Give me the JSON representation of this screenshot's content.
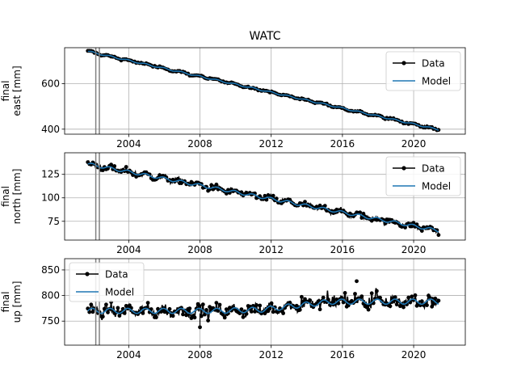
{
  "chart_data": {
    "type": "line",
    "title": "WATC",
    "x_range": [
      2000.4,
      2022.9
    ],
    "x_ticks": [
      2004,
      2008,
      2012,
      2016,
      2020
    ],
    "x_tick_labels": [
      "2004",
      "2008",
      "2012",
      "2016",
      "2020"
    ],
    "x_start": 2001.7,
    "x_end": 2021.4,
    "vertical_markers": [
      2002.15,
      2002.35
    ],
    "legend_placement": "top-right",
    "grid": true,
    "colors": {
      "data": "#000000",
      "model": "#1f77b4",
      "marker_line": "#808080",
      "grid": "#b0b0b0"
    },
    "legend": {
      "data_label": "Data",
      "model_label": "Model"
    },
    "panels": [
      {
        "ylabel_line1": "final",
        "ylabel_line2": "east [mm]",
        "ylim": [
          378,
          758
        ],
        "y_ticks": [
          400,
          600
        ],
        "y_tick_labels": [
          "400",
          "600"
        ],
        "legend_placement": "top-right",
        "model_start": 742,
        "model_end": 398,
        "model_seasonal_amplitude": 3,
        "data_scatter": 4,
        "series": [
          {
            "name": "Data",
            "x": [
              2002,
              2004,
              2006,
              2008,
              2010,
              2012,
              2014,
              2016,
              2018,
              2020,
              2021.4
            ],
            "values": [
              738,
              705,
              670,
              637,
              602,
              568,
              534,
              500,
              466,
              431,
              398
            ]
          },
          {
            "name": "Model",
            "x": [
              2002,
              2004,
              2006,
              2008,
              2010,
              2012,
              2014,
              2016,
              2018,
              2020,
              2021.4
            ],
            "values": [
              738,
              705,
              670,
              637,
              602,
              568,
              534,
              500,
              466,
              431,
              398
            ]
          }
        ]
      },
      {
        "ylabel_line1": "final",
        "ylabel_line2": "north [mm]",
        "ylim": [
          55,
          148
        ],
        "y_ticks": [
          75,
          100,
          125
        ],
        "y_tick_labels": [
          "75",
          "100",
          "125"
        ],
        "legend_placement": "top-right",
        "model_start": 136,
        "model_end": 65,
        "model_seasonal_amplitude": 1.5,
        "data_scatter": 3,
        "series": [
          {
            "name": "Data",
            "x": [
              2002,
              2004,
              2006,
              2008,
              2010,
              2012,
              2014,
              2016,
              2018,
              2020,
              2021.4
            ],
            "values": [
              136,
              128,
              121,
              114,
              106,
              100,
              92,
              84,
              78,
              71,
              68
            ]
          },
          {
            "name": "Model",
            "x": [
              2002,
              2004,
              2006,
              2008,
              2010,
              2012,
              2014,
              2016,
              2018,
              2020,
              2021.4
            ],
            "values": [
              135,
              128,
              121,
              114,
              106,
              99,
              92,
              84,
              77,
              70,
              65
            ]
          }
        ]
      },
      {
        "ylabel_line1": "final",
        "ylabel_line2": "up [mm]",
        "ylim": [
          703,
          872
        ],
        "y_ticks": [
          750,
          800,
          850
        ],
        "y_tick_labels": [
          "750",
          "800",
          "850"
        ],
        "legend_placement": "top-left",
        "model_start": 770,
        "model_end": 790,
        "model_seasonal_amplitude": 5,
        "data_scatter": 11,
        "series": [
          {
            "name": "Data",
            "x": [
              2002,
              2004,
              2006,
              2008,
              2010,
              2012,
              2014,
              2016,
              2018,
              2020,
              2021.4
            ],
            "values": [
              770,
              772,
              774,
              772,
              775,
              778,
              785,
              790,
              788,
              787,
              792
            ]
          },
          {
            "name": "Model",
            "x": [
              2002,
              2004,
              2006,
              2008,
              2010,
              2012,
              2014,
              2016,
              2018,
              2020,
              2021.4
            ],
            "values": [
              770,
              771,
              773,
              775,
              776,
              778,
              783,
              787,
              788,
              789,
              790
            ]
          }
        ]
      }
    ]
  }
}
